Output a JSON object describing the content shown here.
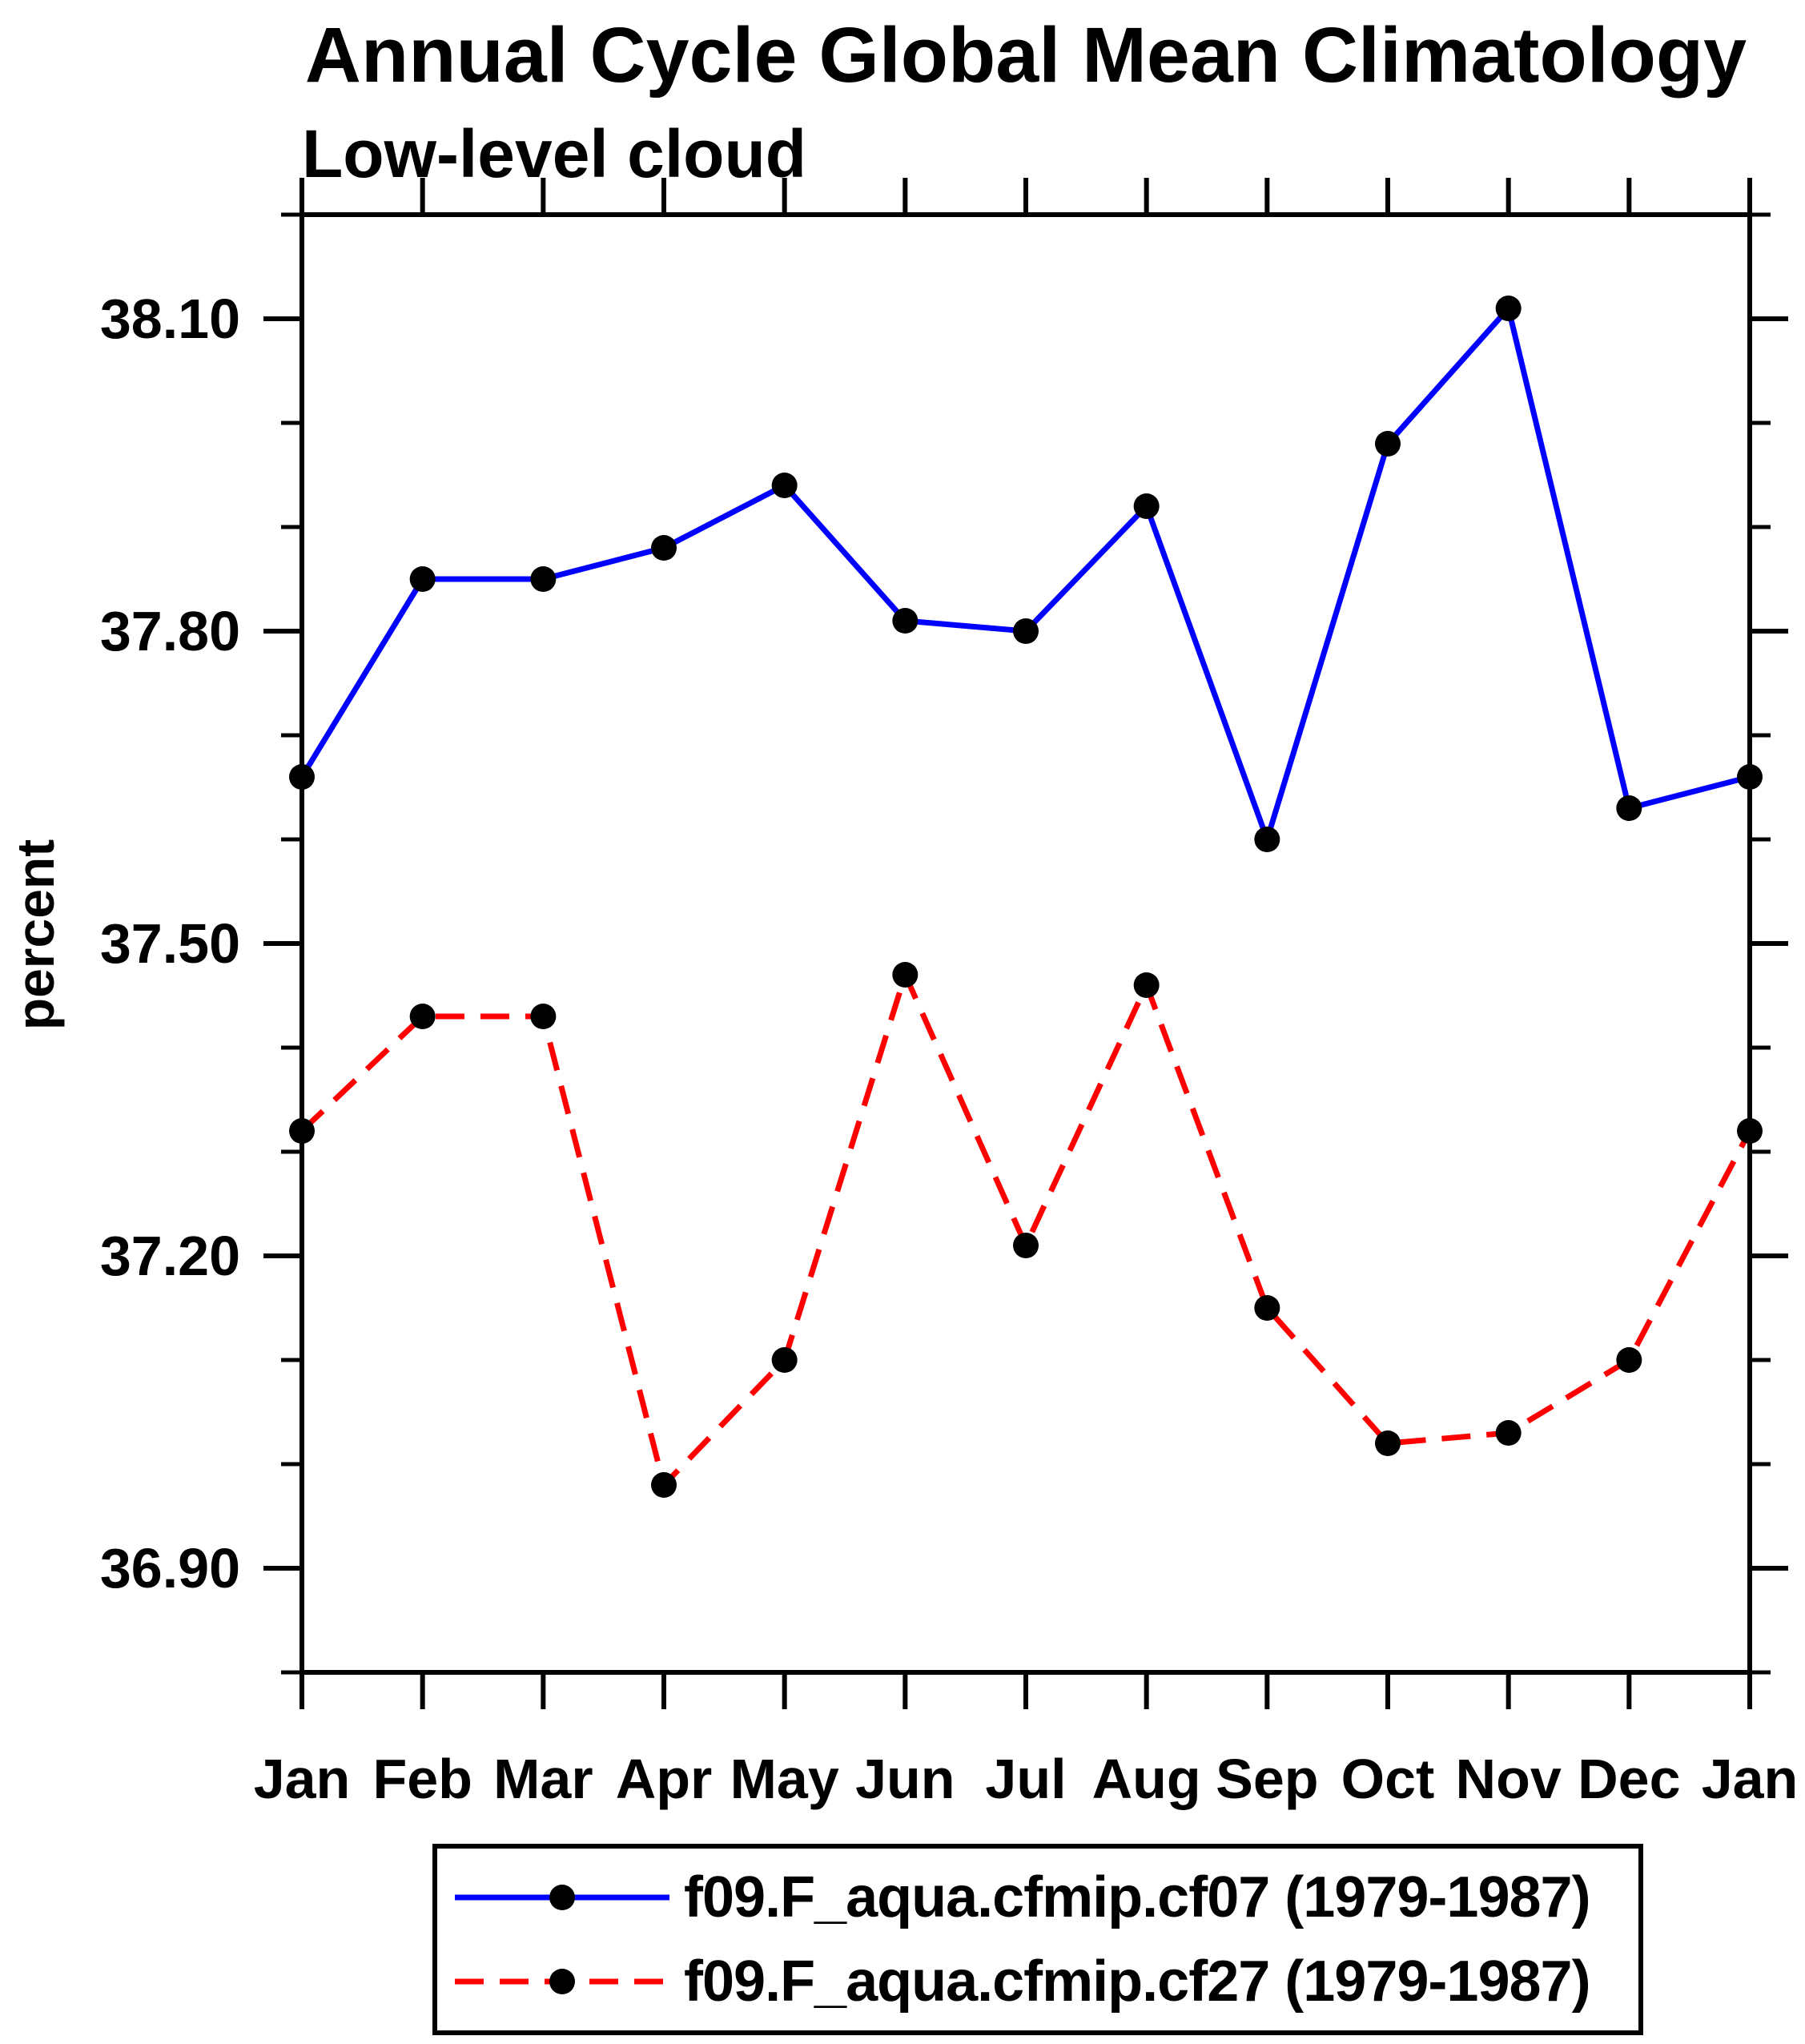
{
  "page": {
    "background": "#ffffff"
  },
  "chart_data": {
    "type": "line",
    "title": "Annual Cycle Global Mean Climatology",
    "subtitle": "Low-level cloud",
    "ylabel": "percent",
    "xlabel": "",
    "categories": [
      "Jan",
      "Feb",
      "Mar",
      "Apr",
      "May",
      "Jun",
      "Jul",
      "Aug",
      "Sep",
      "Oct",
      "Nov",
      "Dec",
      "Jan"
    ],
    "y_axis": {
      "min": 36.8,
      "max": 38.2,
      "major_ticks": [
        36.9,
        37.2,
        37.5,
        37.8,
        38.1
      ],
      "major_tick_labels": [
        "36.90",
        "37.20",
        "37.50",
        "37.80",
        "38.10"
      ],
      "minor_tick_step": 0.1
    },
    "grid": false,
    "legend_position": "bottom",
    "axis_color": "#000000",
    "text_color": "#000000",
    "series": [
      {
        "name": "f09.F_aqua.cfmip.cf07 (1979-1987)",
        "color": "#0000ff",
        "line_style": "solid",
        "marker": "filled-circle",
        "marker_color": "#000000",
        "values": [
          37.66,
          37.85,
          37.85,
          37.88,
          37.94,
          37.81,
          37.8,
          37.92,
          37.6,
          37.98,
          38.11,
          37.63,
          37.66
        ]
      },
      {
        "name": "f09.F_aqua.cfmip.cf27 (1979-1987)",
        "color": "#ff0000",
        "line_style": "dashed",
        "marker": "filled-circle",
        "marker_color": "#000000",
        "values": [
          37.32,
          37.43,
          37.43,
          36.98,
          37.1,
          37.47,
          37.21,
          37.46,
          37.15,
          37.02,
          37.03,
          37.1,
          37.32
        ]
      }
    ]
  }
}
